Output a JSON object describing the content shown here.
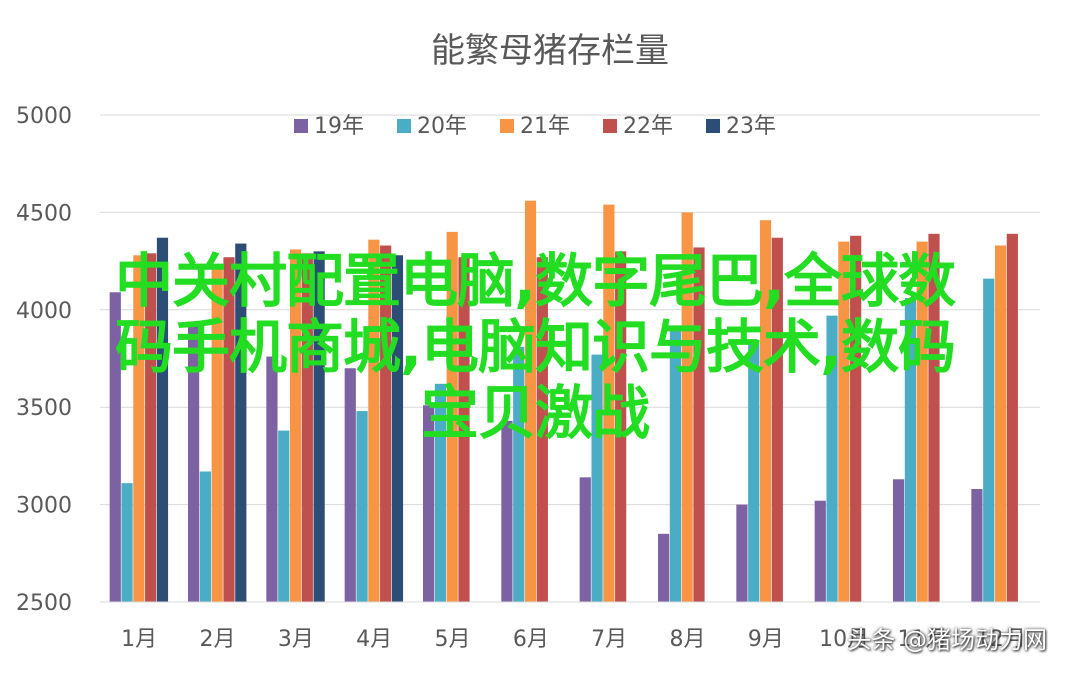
{
  "chart_data": {
    "type": "bar",
    "title": "能繁母猪存栏量",
    "categories": [
      "1月",
      "2月",
      "3月",
      "4月",
      "5月",
      "6月",
      "7月",
      "8月",
      "9月",
      "10月",
      "11月",
      "12月"
    ],
    "ylim": [
      2500,
      5000
    ],
    "yticks": [
      2500,
      3000,
      3500,
      4000,
      4500,
      5000
    ],
    "grid": true,
    "legend_position": "top",
    "series": [
      {
        "name": "19年",
        "color": "#7d62a3",
        "values": [
          4090,
          3940,
          3760,
          3700,
          3510,
          3430,
          3140,
          2850,
          3000,
          3020,
          3130,
          3080
        ]
      },
      {
        "name": "20年",
        "color": "#4aadc5",
        "values": [
          3110,
          3170,
          3380,
          3480,
          3620,
          3810,
          3770,
          3910,
          3830,
          3970,
          4060,
          4160
        ]
      },
      {
        "name": "21年",
        "color": "#f79545",
        "values": [
          4280,
          4220,
          4310,
          4360,
          4400,
          4560,
          4540,
          4500,
          4460,
          4350,
          4350,
          4330
        ]
      },
      {
        "name": "22年",
        "color": "#c0504d",
        "values": [
          4290,
          4270,
          4290,
          4330,
          4270,
          4270,
          4300,
          4320,
          4370,
          4380,
          4390,
          4390
        ]
      },
      {
        "name": "23年",
        "color": "#2c4d75",
        "values": [
          4370,
          4340,
          4300,
          4280,
          null,
          null,
          null,
          null,
          null,
          null,
          null,
          null
        ]
      }
    ]
  },
  "overlay": {
    "line1": "中关村配置电脑,数字尾巴,全球数",
    "line2": "码手机商城,电脑知识与技术,数码",
    "line3": "宝贝激战"
  },
  "watermark": "头条 @猪场动力网"
}
